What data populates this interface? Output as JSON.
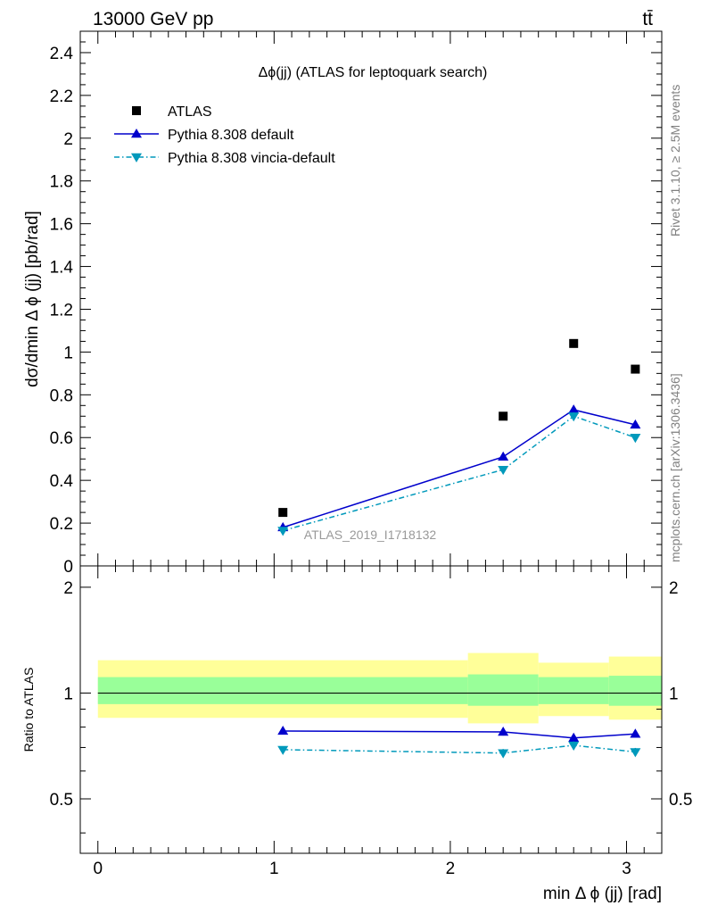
{
  "header": {
    "energy_label": "13000 GeV pp",
    "process_label": "tt̄"
  },
  "side_labels": {
    "rivet": "Rivet 3.1.10, ≥ 2.5M events",
    "mcplots": "mcplots.cern.ch [arXiv:1306.3436]"
  },
  "chart_data": [
    {
      "type": "scatter",
      "title": "Δϕ(jj) (ATLAS for leptoquark search)",
      "xlabel": "min Δ ϕ (jj) [rad]",
      "ylabel": "dσ/dmin Δ ϕ (jj) [pb/rad]",
      "analysis_label": "ATLAS_2019_I1718132",
      "xlim": [
        -0.1,
        3.2
      ],
      "ylim": [
        0,
        2.5
      ],
      "yticks": [
        "0",
        "0.2",
        "0.4",
        "0.6",
        "0.8",
        "1",
        "1.2",
        "1.4",
        "1.6",
        "1.8",
        "2",
        "2.2",
        "2.4"
      ],
      "legend_position": "top-left",
      "x": [
        1.05,
        2.3,
        2.7,
        3.05
      ],
      "series": [
        {
          "name": "ATLAS",
          "color": "#000000",
          "marker": "square",
          "values": [
            0.25,
            0.7,
            1.04,
            0.92
          ]
        },
        {
          "name": "Pythia 8.308 default",
          "color": "#0000cc",
          "marker": "triangle-up",
          "line": "solid",
          "values": [
            0.18,
            0.51,
            0.73,
            0.66
          ],
          "errors": [
            0.006,
            0.012,
            0.018,
            0.015
          ]
        },
        {
          "name": "Pythia 8.308 vincia-default",
          "color": "#0099bb",
          "marker": "triangle-down",
          "line": "dashdot",
          "values": [
            0.165,
            0.45,
            0.7,
            0.6
          ],
          "errors": [
            0.006,
            0.012,
            0.018,
            0.015
          ]
        }
      ]
    },
    {
      "type": "line",
      "ylabel": "Ratio to ATLAS",
      "xticks": [
        "0",
        "1",
        "2",
        "3"
      ],
      "yticks": [
        "0.5",
        "1",
        "2"
      ],
      "ylim": [
        0.35,
        2.3
      ],
      "reference": 1,
      "uncertainty_bands": [
        {
          "x0": 0.0,
          "x1": 2.1,
          "inner": [
            0.93,
            1.11
          ],
          "outer": [
            0.85,
            1.24
          ]
        },
        {
          "x0": 2.1,
          "x1": 2.5,
          "inner": [
            0.92,
            1.13
          ],
          "outer": [
            0.82,
            1.3
          ]
        },
        {
          "x0": 2.5,
          "x1": 2.9,
          "inner": [
            0.93,
            1.11
          ],
          "outer": [
            0.86,
            1.22
          ]
        },
        {
          "x0": 2.9,
          "x1": 3.2,
          "inner": [
            0.92,
            1.12
          ],
          "outer": [
            0.84,
            1.27
          ]
        }
      ],
      "x": [
        1.05,
        2.3,
        2.7,
        3.05
      ],
      "series": [
        {
          "name": "Pythia 8.308 default",
          "color": "#0000cc",
          "marker": "triangle-up",
          "line": "solid",
          "values": [
            0.78,
            0.775,
            0.745,
            0.765
          ],
          "errors": [
            0.008,
            0.018,
            0.018,
            0.018
          ]
        },
        {
          "name": "Pythia 8.308 vincia-default",
          "color": "#0099bb",
          "marker": "triangle-down",
          "line": "dashdot",
          "values": [
            0.69,
            0.675,
            0.71,
            0.68
          ],
          "errors": [
            0.008,
            0.018,
            0.018,
            0.018
          ]
        }
      ]
    }
  ]
}
